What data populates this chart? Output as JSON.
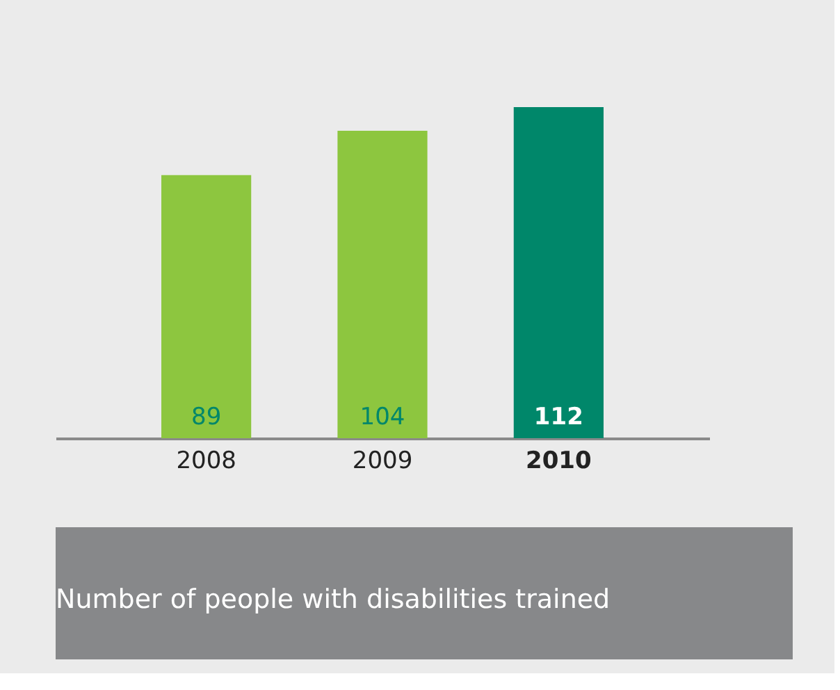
{
  "chart_data": {
    "type": "bar",
    "title": "Number of people with disabilities trained",
    "categories": [
      "2008",
      "2009",
      "2010"
    ],
    "values": [
      89,
      104,
      112
    ],
    "colors": [
      "#8dc63f",
      "#8dc63f",
      "#00876a"
    ],
    "data_labels": true,
    "grid": false
  }
}
